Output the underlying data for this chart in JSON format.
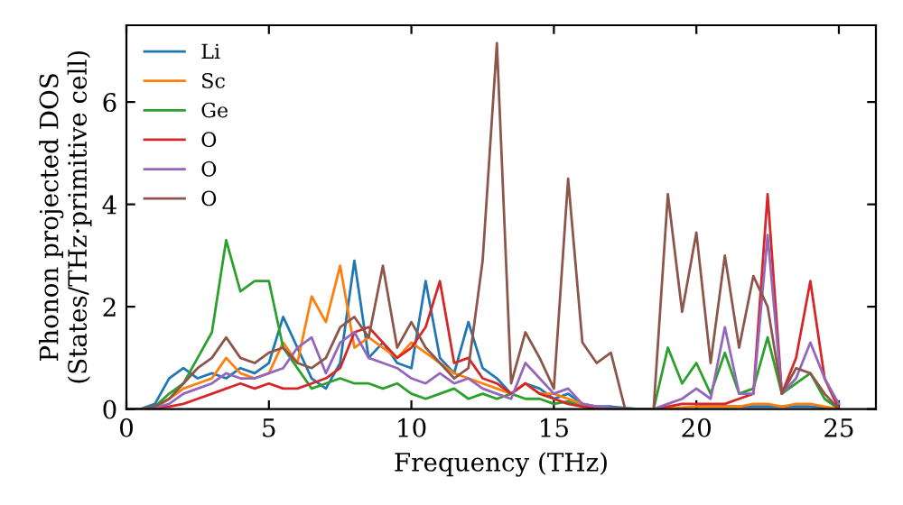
{
  "chart_data": {
    "type": "line",
    "xlabel": "Frequency (THz)",
    "ylabel": "Phonon projected DOS\n(States/THz·primitive cell)",
    "x": [
      0,
      0.5,
      1,
      1.5,
      2,
      2.5,
      3,
      3.5,
      4,
      4.5,
      5,
      5.5,
      6,
      6.5,
      7,
      7.5,
      8,
      8.5,
      9,
      9.5,
      10,
      10.5,
      11,
      11.5,
      12,
      12.5,
      13,
      13.5,
      14,
      14.5,
      15,
      15.5,
      16,
      16.5,
      17,
      17.5,
      18,
      18.5,
      19,
      19.5,
      20,
      20.5,
      21,
      21.5,
      22,
      22.5,
      23,
      23.5,
      24,
      24.5,
      25
    ],
    "xlim": [
      0,
      26.3
    ],
    "ylim": [
      0,
      7.5
    ],
    "xticks": [
      0,
      5,
      10,
      15,
      20,
      25
    ],
    "yticks": [
      0,
      2,
      4,
      6
    ],
    "legend": "top left",
    "grid": false,
    "marker": "none",
    "line_style": "solid",
    "series": [
      {
        "name": "Li",
        "color": "#1f77b4",
        "values": [
          0,
          0,
          0.1,
          0.6,
          0.8,
          0.6,
          0.7,
          0.6,
          0.8,
          0.7,
          0.9,
          1.8,
          1.2,
          0.6,
          0.4,
          0.9,
          2.9,
          1.0,
          1.3,
          0.9,
          0.8,
          2.5,
          1.0,
          0.7,
          1.7,
          0.8,
          0.6,
          0.3,
          0.5,
          0.4,
          0.2,
          0.3,
          0.1,
          0.05,
          0.05,
          0.02,
          0,
          0,
          null,
          null,
          0.05,
          0.05,
          0.05,
          0.05,
          0.05,
          0.05,
          0.05,
          0.05,
          0.05,
          0.03,
          0
        ]
      },
      {
        "name": "Sc",
        "color": "#ff7f0e",
        "values": [
          0,
          0,
          0.02,
          0.2,
          0.4,
          0.5,
          0.6,
          1.0,
          0.7,
          0.6,
          0.7,
          1.3,
          0.9,
          2.2,
          1.7,
          2.8,
          1.2,
          1.4,
          1.2,
          1.0,
          1.3,
          1.1,
          0.9,
          0.7,
          0.6,
          0.5,
          0.4,
          0.3,
          0.5,
          0.3,
          0.3,
          0.2,
          0.1,
          0.05,
          0.02,
          0,
          0,
          0,
          0.02,
          0.03,
          0.05,
          0.05,
          0.05,
          0.05,
          0.1,
          0.1,
          0.05,
          0.1,
          0.1,
          0.05,
          0
        ]
      },
      {
        "name": "Ge",
        "color": "#2ca02c",
        "values": [
          0,
          0,
          0.05,
          0.3,
          0.5,
          1.0,
          1.5,
          3.3,
          2.3,
          2.5,
          2.5,
          1.2,
          0.8,
          0.4,
          0.5,
          0.6,
          0.5,
          0.5,
          0.4,
          0.5,
          0.3,
          0.2,
          0.3,
          0.4,
          0.2,
          0.3,
          0.2,
          0.3,
          0.2,
          0.2,
          0.1,
          0.15,
          0.05,
          0.02,
          0.02,
          0,
          0,
          0,
          1.2,
          0.5,
          0.9,
          0.3,
          1.1,
          0.3,
          0.4,
          1.4,
          0.3,
          0.5,
          0.7,
          0.2,
          0
        ]
      },
      {
        "name": "O",
        "color": "#d62728",
        "values": [
          0,
          0,
          0.02,
          0.05,
          0.1,
          0.2,
          0.3,
          0.4,
          0.5,
          0.4,
          0.5,
          0.4,
          0.4,
          0.5,
          0.6,
          0.8,
          1.5,
          1.6,
          1.3,
          1.0,
          1.2,
          1.6,
          2.5,
          0.9,
          1.0,
          0.6,
          0.5,
          0.3,
          0.5,
          0.3,
          0.2,
          0.1,
          0.05,
          0.02,
          0.02,
          0,
          0,
          0,
          0.05,
          0.1,
          0.1,
          0.1,
          0.1,
          0.2,
          0.3,
          4.2,
          0.3,
          1.0,
          2.5,
          0.6,
          0
        ]
      },
      {
        "name": "O",
        "color": "#9467bd",
        "values": [
          0,
          0,
          0.02,
          0.1,
          0.3,
          0.4,
          0.5,
          0.7,
          0.6,
          0.6,
          0.7,
          0.8,
          1.2,
          1.4,
          0.7,
          1.3,
          1.5,
          1.0,
          0.9,
          0.8,
          0.6,
          0.5,
          0.7,
          0.5,
          0.6,
          0.4,
          0.3,
          0.2,
          0.9,
          0.6,
          0.3,
          0.4,
          0.1,
          0.05,
          0.02,
          0,
          0,
          0,
          0.1,
          0.2,
          0.4,
          0.2,
          1.6,
          0.3,
          0.3,
          3.4,
          0.3,
          0.6,
          1.3,
          0.6,
          0.1
        ]
      },
      {
        "name": "O",
        "color": "#8c564b",
        "values": [
          0,
          0,
          0.05,
          0.2,
          0.5,
          0.8,
          1.0,
          1.4,
          1.0,
          0.9,
          1.1,
          1.2,
          0.9,
          0.8,
          1.0,
          1.6,
          1.8,
          1.4,
          2.8,
          1.2,
          1.7,
          1.2,
          0.9,
          0.6,
          0.8,
          2.9,
          7.15,
          0.5,
          1.5,
          1.0,
          0.4,
          4.5,
          1.3,
          0.9,
          1.1,
          0,
          0,
          0,
          4.2,
          1.9,
          3.45,
          0.9,
          3.0,
          1.2,
          2.6,
          2.0,
          0.3,
          0.8,
          0.7,
          0.3,
          0
        ]
      }
    ]
  }
}
